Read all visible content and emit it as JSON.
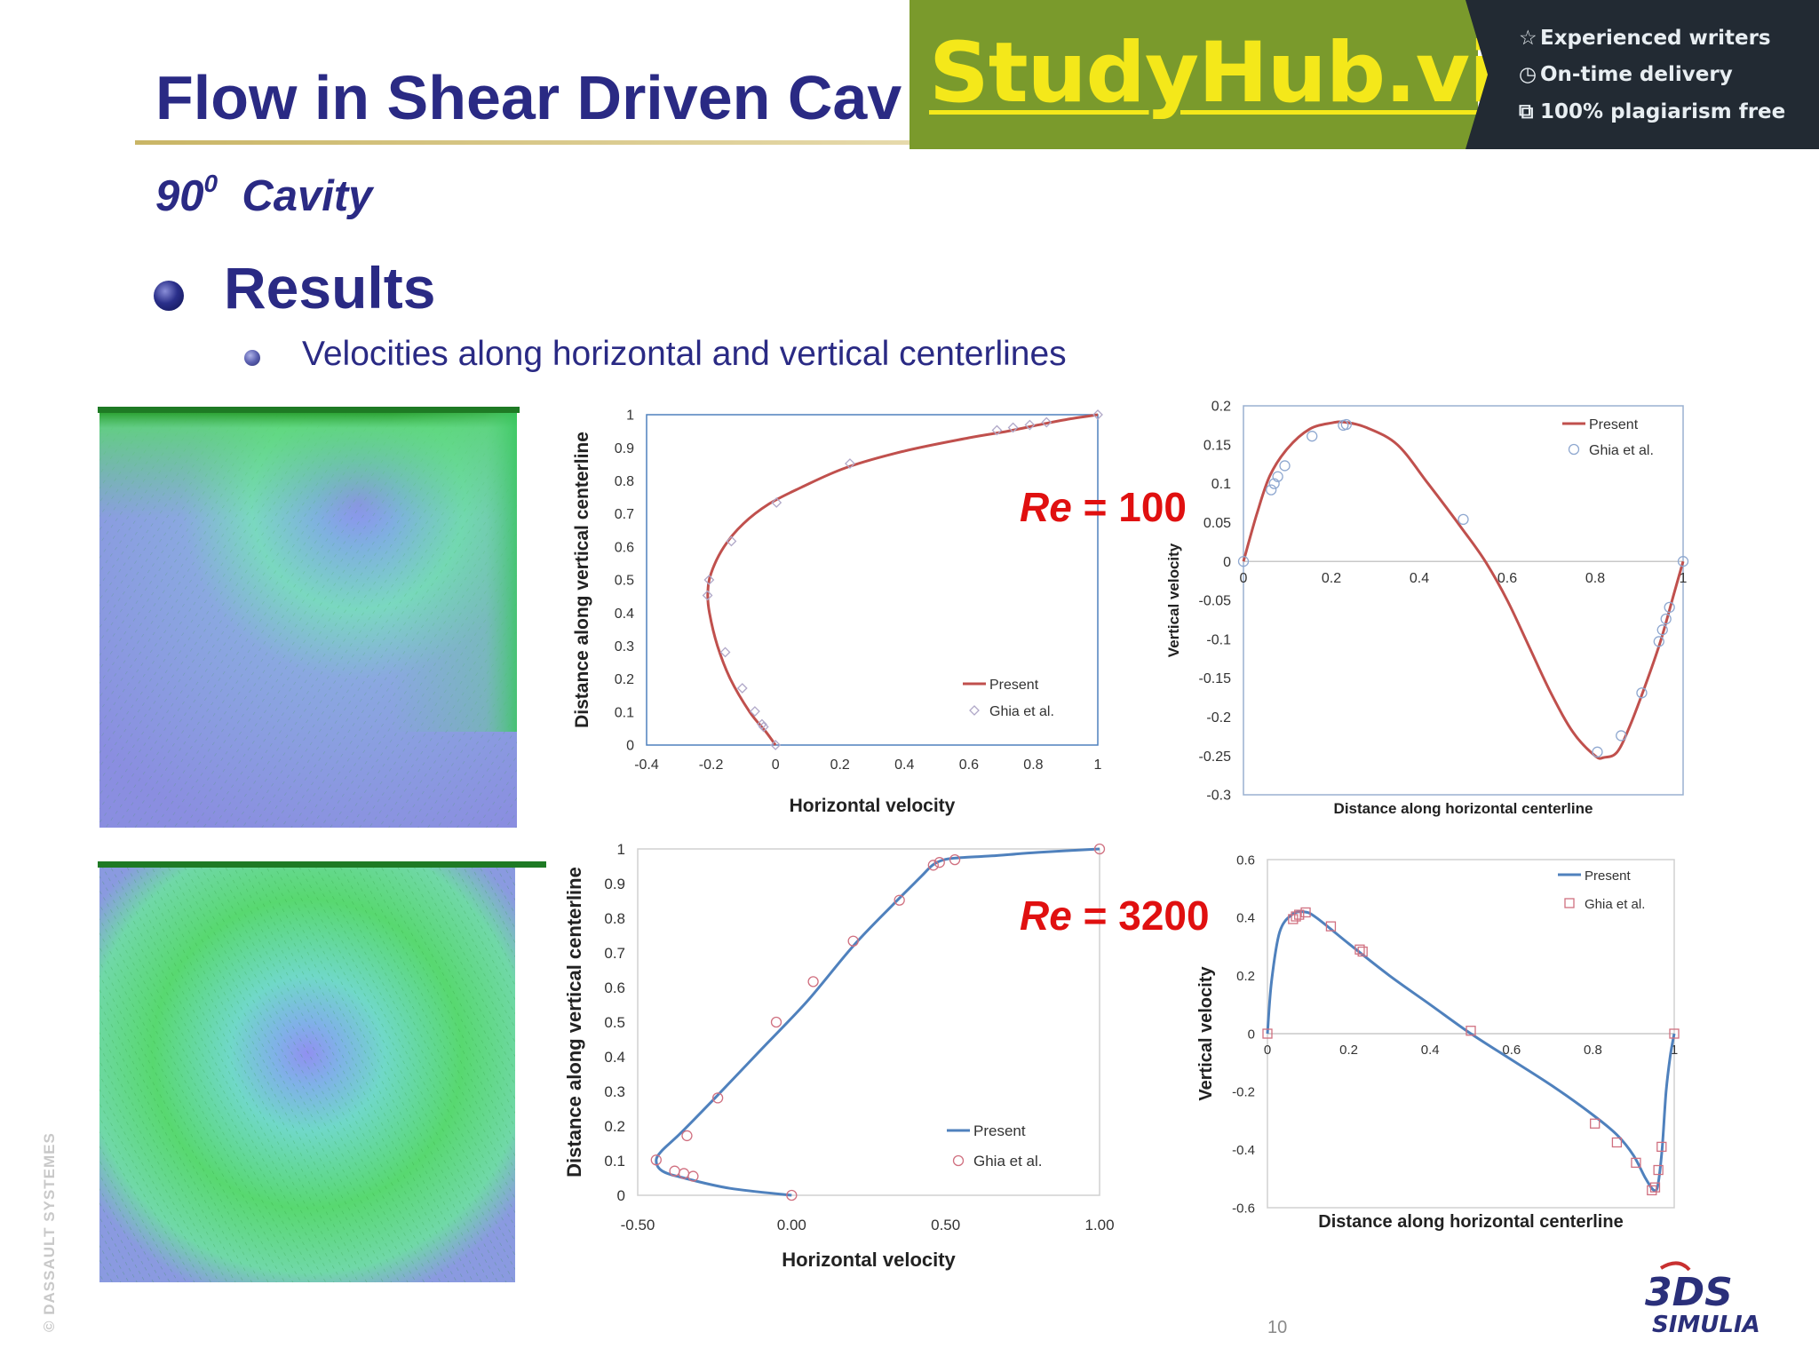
{
  "slide": {
    "title": "Flow in Shear Driven Cav",
    "subtitle_angle": "90",
    "subtitle_sup": "0",
    "subtitle_rest": "Cavity",
    "bullet_heading": "Results",
    "sub_bullet": "Velocities along horizontal and vertical centerlines",
    "page_number": "10",
    "watermark": "© DASSAULT SYSTEMES",
    "logo_text": "SIMULIA",
    "logo_mark": "3DS"
  },
  "banner": {
    "logo": "StudyHub.vip",
    "features": [
      "Experienced writers",
      "On-time delivery",
      "100% plagiarism free"
    ],
    "icons": [
      "star-icon",
      "clock-icon",
      "copy-icon"
    ],
    "colors": {
      "main": "#7a9a2c",
      "logo": "#f4e81a",
      "dark": "#222a33"
    }
  },
  "re_labels": [
    {
      "prefix": "Re",
      "eq": " = ",
      "value": "100"
    },
    {
      "prefix": "Re",
      "eq": " = ",
      "value": "3200"
    }
  ],
  "chart_data": [
    {
      "id": "u-re100",
      "type": "line",
      "xlabel": "Horizontal velocity",
      "ylabel": "Distance along vertical centerline",
      "xlim": [
        -0.4,
        1
      ],
      "ylim": [
        0,
        1
      ],
      "xticks": [
        -0.4,
        -0.2,
        0,
        0.2,
        0.4,
        0.6,
        0.8,
        1
      ],
      "xtick_labels": [
        "-0.4",
        "-0.2",
        "0",
        "0.2",
        "0.4",
        "0.6",
        "0.8",
        "1"
      ],
      "yticks": [
        0,
        0.1,
        0.2,
        0.3,
        0.4,
        0.5,
        0.6,
        0.7,
        0.8,
        0.9,
        1
      ],
      "ytick_labels": [
        "0",
        "0.1",
        "0.2",
        "0.3",
        "0.4",
        "0.5",
        "0.6",
        "0.7",
        "0.8",
        "0.9",
        "1"
      ],
      "grid": false,
      "legend_position": "bottom-right",
      "line_color": "#c0504d",
      "marker_color": "#b0a8c8",
      "marker": "diamond",
      "series": [
        {
          "name": "Present",
          "style": "line",
          "x": [
            0,
            -0.03,
            -0.08,
            -0.14,
            -0.18,
            -0.205,
            -0.21,
            -0.2,
            -0.16,
            -0.1,
            -0.02,
            0.08,
            0.22,
            0.4,
            0.6,
            0.72,
            0.82,
            0.9,
            1.0
          ],
          "y": [
            0,
            0.04,
            0.1,
            0.2,
            0.3,
            0.4,
            0.46,
            0.52,
            0.6,
            0.67,
            0.73,
            0.78,
            0.84,
            0.89,
            0.93,
            0.95,
            0.97,
            0.985,
            1.0
          ]
        },
        {
          "name": "Ghia et al.",
          "style": "marker",
          "x": [
            0,
            -0.037,
            -0.042,
            -0.064,
            -0.103,
            -0.156,
            -0.211,
            -0.206,
            -0.137,
            0.003,
            0.231,
            0.687,
            0.737,
            0.789,
            0.841,
            1.0
          ],
          "y": [
            0,
            0.055,
            0.063,
            0.102,
            0.172,
            0.281,
            0.453,
            0.5,
            0.617,
            0.734,
            0.852,
            0.953,
            0.961,
            0.969,
            0.977,
            1.0
          ]
        }
      ]
    },
    {
      "id": "v-re100",
      "type": "line",
      "xlabel": "Distance along horizontal centerline",
      "ylabel": "Vertical velocity",
      "xlim": [
        0,
        1
      ],
      "ylim": [
        -0.3,
        0.2
      ],
      "xticks": [
        0,
        0.2,
        0.4,
        0.6,
        0.8,
        1
      ],
      "xtick_labels": [
        "0",
        "0.2",
        "0.4",
        "0.6",
        "0.8",
        "1"
      ],
      "yticks": [
        -0.3,
        -0.25,
        -0.2,
        -0.15,
        -0.1,
        -0.05,
        0,
        0.05,
        0.1,
        0.15,
        0.2
      ],
      "ytick_labels": [
        "-0.3",
        "-0.25",
        "-0.2",
        "-0.15",
        "-0.1",
        "-0.05",
        "0",
        "0.05",
        "0.1",
        "0.15",
        "0.2"
      ],
      "grid": false,
      "legend_position": "top-right",
      "line_color": "#c0504d",
      "marker_color": "#8fa8d0",
      "marker": "circle",
      "series": [
        {
          "name": "Present",
          "style": "line",
          "x": [
            0,
            0.03,
            0.06,
            0.1,
            0.15,
            0.2,
            0.23,
            0.28,
            0.35,
            0.42,
            0.5,
            0.55,
            0.6,
            0.65,
            0.7,
            0.75,
            0.8,
            0.82,
            0.85,
            0.88,
            0.92,
            0.95,
            0.98,
            1.0
          ],
          "y": [
            0,
            0.06,
            0.11,
            0.145,
            0.17,
            0.178,
            0.179,
            0.172,
            0.15,
            0.1,
            0.04,
            0.0,
            -0.05,
            -0.11,
            -0.17,
            -0.22,
            -0.25,
            -0.252,
            -0.245,
            -0.21,
            -0.15,
            -0.1,
            -0.04,
            0.0
          ]
        },
        {
          "name": "Ghia et al.",
          "style": "marker",
          "x": [
            0,
            0.063,
            0.07,
            0.078,
            0.094,
            0.156,
            0.227,
            0.234,
            0.5,
            0.805,
            0.859,
            0.906,
            0.945,
            0.953,
            0.961,
            0.969,
            1.0
          ],
          "y": [
            0,
            0.092,
            0.1,
            0.109,
            0.123,
            0.161,
            0.175,
            0.176,
            0.054,
            -0.245,
            -0.224,
            -0.169,
            -0.103,
            -0.088,
            -0.074,
            -0.059,
            0
          ]
        }
      ]
    },
    {
      "id": "u-re3200",
      "type": "line",
      "xlabel": "Horizontal velocity",
      "ylabel": "Distance along vertical centerline",
      "xlim": [
        -0.5,
        1
      ],
      "ylim": [
        0,
        1
      ],
      "xticks": [
        -0.5,
        0,
        0.5,
        1
      ],
      "xtick_labels": [
        "-0.50",
        "0.00",
        "0.50",
        "1.00"
      ],
      "yticks": [
        0,
        0.1,
        0.2,
        0.3,
        0.4,
        0.5,
        0.6,
        0.7,
        0.8,
        0.9,
        1
      ],
      "ytick_labels": [
        "0",
        "0.1",
        "0.2",
        "0.3",
        "0.4",
        "0.5",
        "0.6",
        "0.7",
        "0.8",
        "0.9",
        "1"
      ],
      "grid": false,
      "legend_position": "bottom-right",
      "line_color": "#4f81bd",
      "marker_color": "#d07080",
      "marker": "circle",
      "series": [
        {
          "name": "Present",
          "style": "line",
          "x": [
            0,
            -0.2,
            -0.35,
            -0.42,
            -0.44,
            -0.42,
            -0.36,
            -0.25,
            -0.1,
            0.05,
            0.2,
            0.33,
            0.42,
            0.46,
            0.5,
            0.55,
            0.65,
            0.8,
            1.0
          ],
          "y": [
            0,
            0.02,
            0.05,
            0.07,
            0.1,
            0.13,
            0.18,
            0.28,
            0.42,
            0.56,
            0.72,
            0.84,
            0.92,
            0.955,
            0.97,
            0.975,
            0.98,
            0.99,
            1.0
          ]
        },
        {
          "name": "Ghia et al.",
          "style": "marker",
          "x": [
            0,
            -0.32,
            -0.35,
            -0.38,
            -0.44,
            -0.34,
            -0.24,
            -0.05,
            0.07,
            0.2,
            0.35,
            0.46,
            0.48,
            0.53,
            1.0
          ],
          "y": [
            0,
            0.055,
            0.063,
            0.07,
            0.102,
            0.172,
            0.281,
            0.5,
            0.617,
            0.734,
            0.852,
            0.953,
            0.961,
            0.969,
            1.0
          ]
        }
      ]
    },
    {
      "id": "v-re3200",
      "type": "line",
      "xlabel": "Distance along horizontal centerline",
      "ylabel": "Vertical velocity",
      "xlim": [
        0,
        1
      ],
      "ylim": [
        -0.6,
        0.6
      ],
      "xticks": [
        0,
        0.2,
        0.4,
        0.6,
        0.8,
        1
      ],
      "xtick_labels": [
        "0",
        "0.2",
        "0.4",
        "0.6",
        "0.8",
        "1"
      ],
      "yticks": [
        -0.6,
        -0.4,
        -0.2,
        0,
        0.2,
        0.4,
        0.6
      ],
      "ytick_labels": [
        "-0.6",
        "-0.4",
        "-0.2",
        "0",
        "0.2",
        "0.4",
        "0.6"
      ],
      "grid": false,
      "legend_position": "top-right",
      "line_color": "#4f81bd",
      "marker_color": "#d07080",
      "marker": "square",
      "series": [
        {
          "name": "Present",
          "style": "line",
          "x": [
            0,
            0.01,
            0.03,
            0.06,
            0.09,
            0.12,
            0.2,
            0.3,
            0.4,
            0.5,
            0.6,
            0.7,
            0.8,
            0.86,
            0.9,
            0.93,
            0.95,
            0.96,
            0.97,
            0.98,
            0.99,
            1.0
          ],
          "y": [
            0,
            0.18,
            0.35,
            0.41,
            0.42,
            0.4,
            0.31,
            0.2,
            0.1,
            0.0,
            -0.09,
            -0.18,
            -0.28,
            -0.35,
            -0.42,
            -0.5,
            -0.54,
            -0.52,
            -0.4,
            -0.2,
            -0.08,
            0.0
          ]
        },
        {
          "name": "Ghia et al.",
          "style": "square",
          "x": [
            0,
            0.063,
            0.07,
            0.078,
            0.094,
            0.156,
            0.227,
            0.234,
            0.5,
            0.805,
            0.859,
            0.906,
            0.945,
            0.953,
            0.961,
            0.969,
            1.0
          ],
          "y": [
            0,
            0.395,
            0.404,
            0.41,
            0.418,
            0.37,
            0.29,
            0.283,
            0.01,
            -0.31,
            -0.375,
            -0.445,
            -0.54,
            -0.53,
            -0.47,
            -0.39,
            0
          ]
        }
      ]
    }
  ]
}
